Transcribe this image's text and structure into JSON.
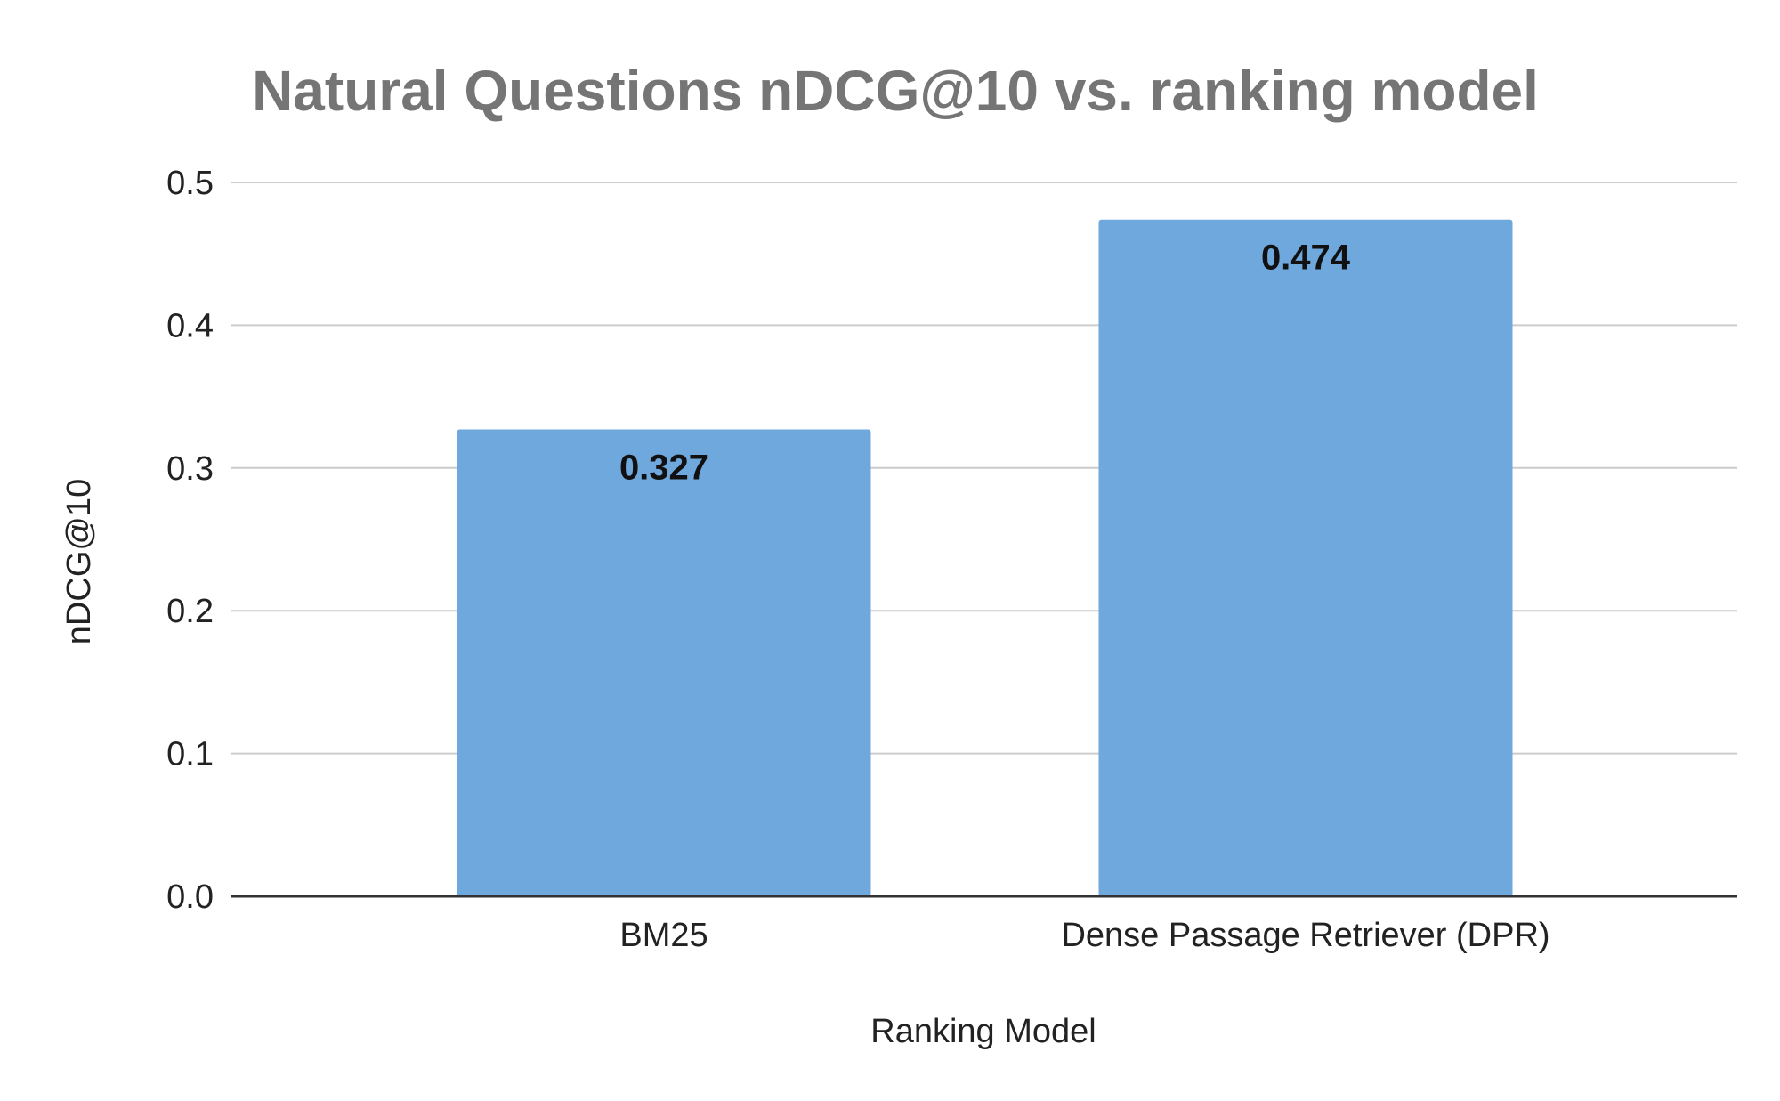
{
  "colors": {
    "bar": "#6fa8dc",
    "title": "#757575",
    "grid": "#cccccc",
    "baseline": "#333333",
    "text": "#222222"
  },
  "chart_data": {
    "type": "bar",
    "title": "Natural Questions nDCG@10 vs. ranking model",
    "xlabel": "Ranking Model",
    "ylabel": "nDCG@10",
    "categories": [
      "BM25",
      "Dense Passage Retriever (DPR)"
    ],
    "values": [
      0.327,
      0.474
    ],
    "data_labels": [
      "0.327",
      "0.474"
    ],
    "ylim": [
      0,
      0.5
    ],
    "y_ticks": [
      0.0,
      0.1,
      0.2,
      0.3,
      0.4,
      0.5
    ],
    "y_tick_labels": [
      "0.0",
      "0.1",
      "0.2",
      "0.3",
      "0.4",
      "0.5"
    ],
    "grid": true,
    "legend": "none"
  }
}
